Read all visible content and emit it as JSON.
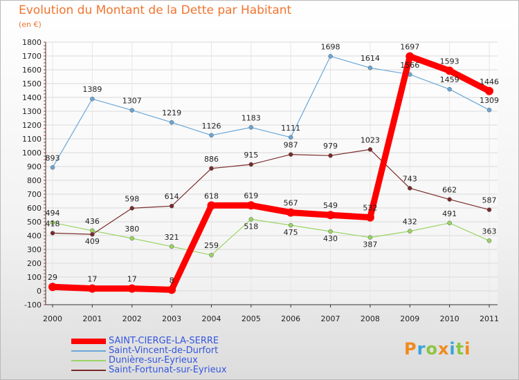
{
  "title": "Evolution du Montant de la Dette par Habitant",
  "unit": "(en €)",
  "logo": "Proxiti",
  "chart_data": {
    "type": "line",
    "title": "Evolution du Montant de la Dette par Habitant",
    "ylabel": "(en €)",
    "xlabel": "",
    "x": [
      "2000",
      "2001",
      "2002",
      "2003",
      "2004",
      "2005",
      "2006",
      "2007",
      "2008",
      "2009",
      "2010",
      "2011"
    ],
    "ylim": [
      -100,
      1800
    ],
    "yticks": [
      -100,
      0,
      100,
      200,
      300,
      400,
      500,
      600,
      700,
      800,
      900,
      1000,
      1100,
      1200,
      1300,
      1400,
      1500,
      1600,
      1700,
      1800
    ],
    "grid": true,
    "legend_position": "bottom-left",
    "series": [
      {
        "name": "SAINT-CIERGE-LA-SERRE",
        "color": "#ff0000",
        "values": [
          29,
          17,
          17,
          8,
          618,
          619,
          567,
          549,
          532,
          1697,
          1593,
          1446
        ]
      },
      {
        "name": "Saint-Vincent-de-Durfort",
        "color": "#6aa6d6",
        "values": [
          893,
          1389,
          1307,
          1219,
          1126,
          1183,
          1111,
          1698,
          1614,
          1566,
          1459,
          1309
        ]
      },
      {
        "name": "Dunière-sur-Eyrieux",
        "color": "#9ad464",
        "values": [
          494,
          436,
          380,
          321,
          259,
          518,
          475,
          430,
          387,
          432,
          491,
          363
        ]
      },
      {
        "name": "Saint-Fortunat-sur-Eyrieux",
        "color": "#7a2a2a",
        "values": [
          418,
          409,
          598,
          614,
          886,
          915,
          987,
          979,
          1023,
          743,
          662,
          587
        ]
      }
    ]
  }
}
